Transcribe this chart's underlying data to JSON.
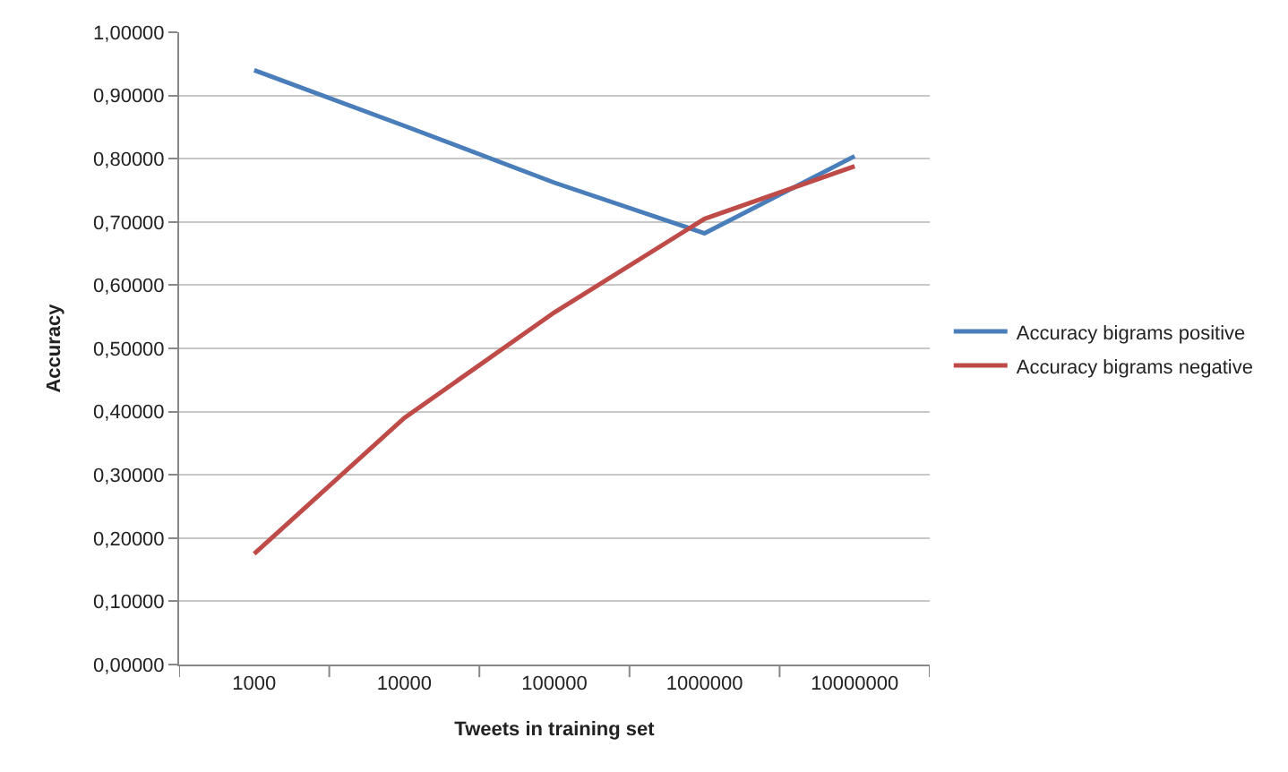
{
  "chart_data": {
    "type": "line",
    "xlabel": "Tweets in training set",
    "ylabel": "Accuracy",
    "categories": [
      "1000",
      "10000",
      "100000",
      "1000000",
      "10000000"
    ],
    "series": [
      {
        "name": "Accuracy bigrams positive",
        "color": "#4a7ebb",
        "values": [
          0.94,
          0.852,
          0.762,
          0.682,
          0.804
        ]
      },
      {
        "name": "Accuracy bigrams negative",
        "color": "#be4b48",
        "values": [
          0.175,
          0.39,
          0.557,
          0.705,
          0.788
        ]
      }
    ],
    "ylim": [
      0,
      1
    ],
    "yticks": [
      {
        "value": 0,
        "label": "0,00000"
      },
      {
        "value": 0.1,
        "label": "0,10000"
      },
      {
        "value": 0.2,
        "label": "0,20000"
      },
      {
        "value": 0.3,
        "label": "0,30000"
      },
      {
        "value": 0.4,
        "label": "0,40000"
      },
      {
        "value": 0.5,
        "label": "0,50000"
      },
      {
        "value": 0.6,
        "label": "0,60000"
      },
      {
        "value": 0.7,
        "label": "0,70000"
      },
      {
        "value": 0.8,
        "label": "0,80000"
      },
      {
        "value": 0.9,
        "label": "0,90000"
      },
      {
        "value": 1,
        "label": "1,00000"
      }
    ],
    "grid": "y",
    "legend": "right",
    "marker": "none",
    "line_style": "solid"
  }
}
